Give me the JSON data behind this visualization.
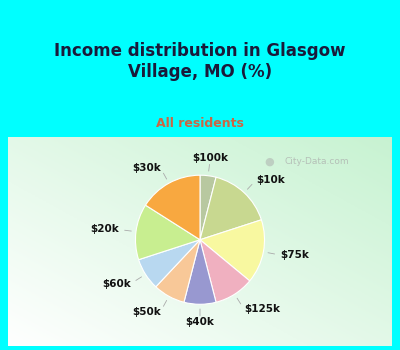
{
  "title": "Income distribution in Glasgow\nVillage, MO (%)",
  "subtitle": "All residents",
  "labels": [
    "$100k",
    "$10k",
    "$75k",
    "$125k",
    "$40k",
    "$50k",
    "$60k",
    "$20k",
    "$30k"
  ],
  "sizes": [
    4,
    16,
    16,
    10,
    8,
    8,
    8,
    14,
    16
  ],
  "colors": [
    "#c5d9a8",
    "#f5f5a0",
    "#f0b8c8",
    "#9090d8",
    "#f5c89a",
    "#add8e8",
    "#b8eeaa",
    "#f0a855",
    "#c5d9a8"
  ],
  "wedge_colors": [
    "#a8c890",
    "#f0f090",
    "#f0a8bc",
    "#8080cc",
    "#f0b888",
    "#98ccdc",
    "#a8e098",
    "#e89840",
    "#b8d090"
  ],
  "bg_cyan": "#00ffff",
  "title_color": "#1a1a3a",
  "subtitle_color": "#cc6644",
  "watermark": "City-Data.com",
  "label_fontsize": 7.5,
  "title_fontsize": 12,
  "subtitle_fontsize": 9
}
